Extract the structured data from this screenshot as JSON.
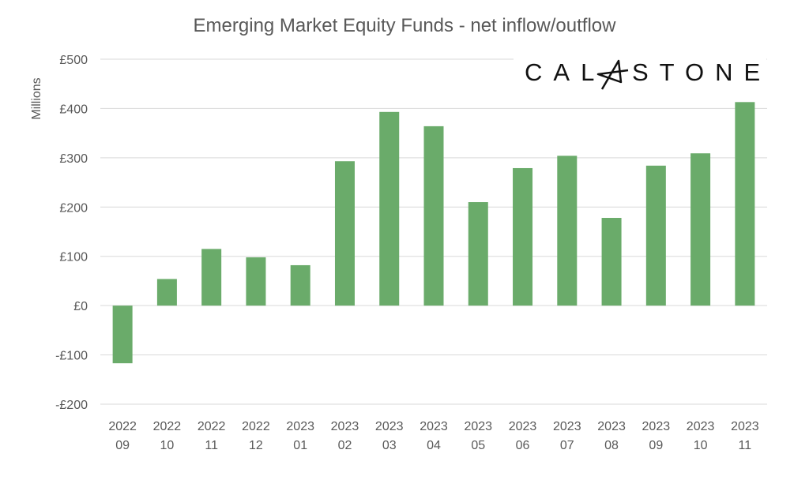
{
  "chart_data": {
    "type": "bar",
    "title": "Emerging Market Equity Funds - net inflow/outflow",
    "xlabel": "",
    "ylabel": "Millions",
    "ylim": [
      -200,
      500
    ],
    "yticks": [
      500,
      400,
      300,
      200,
      100,
      0,
      -100,
      -200
    ],
    "ytick_labels": [
      "£500",
      "£400",
      "£300",
      "£200",
      "£100",
      "£0",
      "-£100",
      "-£200"
    ],
    "grid": true,
    "categories": [
      [
        "2022",
        "09"
      ],
      [
        "2022",
        "10"
      ],
      [
        "2022",
        "11"
      ],
      [
        "2022",
        "12"
      ],
      [
        "2023",
        "01"
      ],
      [
        "2023",
        "02"
      ],
      [
        "2023",
        "03"
      ],
      [
        "2023",
        "04"
      ],
      [
        "2023",
        "05"
      ],
      [
        "2023",
        "06"
      ],
      [
        "2023",
        "07"
      ],
      [
        "2023",
        "08"
      ],
      [
        "2023",
        "09"
      ],
      [
        "2023",
        "10"
      ],
      [
        "2023",
        "11"
      ]
    ],
    "values": [
      -117,
      54,
      115,
      98,
      82,
      293,
      393,
      364,
      210,
      279,
      304,
      178,
      284,
      309,
      413
    ],
    "bar_color": "#6aab6a",
    "grid_color": "#d9d9d9"
  },
  "logo": {
    "left": "CAL",
    "right": "STONE",
    "full": "CALASTONE"
  }
}
